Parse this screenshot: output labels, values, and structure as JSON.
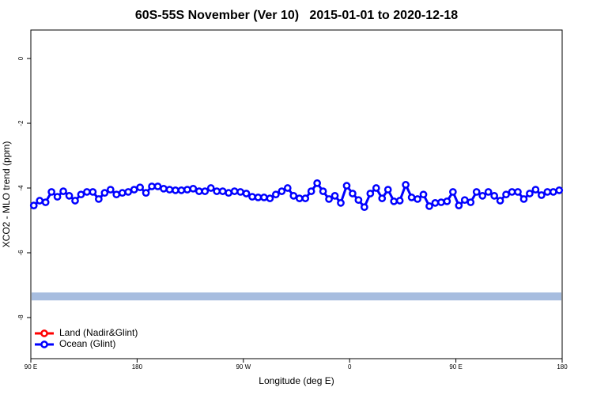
{
  "chart_data": {
    "type": "line",
    "title": "60S-55S November (Ver 10)   2015-01-01 to 2020-12-18",
    "x_label": "Longitude (deg E)",
    "y_label": "XCO2 - MLO trend (ppm)",
    "xlim": [
      90,
      540
    ],
    "xticks": [
      {
        "value": 90,
        "label": "90 E"
      },
      180,
      {
        "value": 270,
        "label": "90 W"
      },
      {
        "value": 360,
        "label": "0"
      },
      {
        "value": 450,
        "label": "90 E"
      },
      {
        "value": 540,
        "label": "180"
      }
    ],
    "ylim": [
      -9.27,
      0.88
    ],
    "yticks": [
      0,
      -2,
      -4,
      -6,
      -8
    ],
    "legend": "bottom-left",
    "band": {
      "value": -7.35,
      "color": "#a7bddf"
    },
    "x": [
      92.5,
      97.5,
      102.5,
      107.5,
      112.5,
      117.5,
      122.5,
      127.5,
      132.5,
      137.5,
      142.5,
      147.5,
      152.5,
      157.5,
      162.5,
      167.5,
      172.5,
      177.5,
      182.5,
      187.5,
      192.5,
      197.5,
      202.5,
      207.5,
      212.5,
      217.5,
      222.5,
      227.5,
      232.5,
      237.5,
      242.5,
      247.5,
      252.5,
      257.5,
      262.5,
      267.5,
      272.5,
      277.5,
      282.5,
      287.5,
      292.5,
      297.5,
      302.5,
      307.5,
      312.5,
      317.5,
      322.5,
      327.5,
      332.5,
      337.5,
      342.5,
      347.5,
      352.5,
      357.5,
      362.5,
      367.5,
      372.5,
      377.5,
      382.5,
      387.5,
      392.5,
      397.5,
      402.5,
      407.5,
      412.5,
      417.5,
      422.5,
      427.5,
      432.5,
      437.5,
      442.5,
      447.5,
      452.5,
      457.5,
      462.5,
      467.5,
      472.5,
      477.5,
      482.5,
      487.5,
      492.5,
      497.5,
      502.5,
      507.5,
      512.5,
      517.5,
      522.5,
      527.5,
      532.5,
      537.5
    ],
    "series": [
      {
        "name": "Land (Nadir&Glint)",
        "color": "#ff0000",
        "values": [
          null,
          null,
          null,
          null,
          null,
          null,
          null,
          null,
          null,
          null,
          null,
          null,
          null,
          null,
          null,
          null,
          null,
          null,
          null,
          null,
          null,
          null,
          null,
          null,
          null,
          null,
          null,
          null,
          null,
          null,
          null,
          null,
          null,
          null,
          null,
          null,
          null,
          null,
          null,
          null,
          null,
          null,
          null,
          null,
          null,
          null,
          null,
          null,
          null,
          null,
          null,
          null,
          null,
          null,
          null,
          null,
          null,
          null,
          null,
          null,
          null,
          null,
          null,
          null,
          null,
          null,
          null,
          null,
          null,
          null,
          null,
          null,
          null,
          null,
          null,
          null,
          null,
          null,
          null,
          null,
          null,
          null,
          null,
          null,
          null,
          null,
          null,
          null,
          null,
          null
        ]
      },
      {
        "name": "Ocean (Glint)",
        "color": "#0000ff",
        "values": [
          -4.54,
          -4.39,
          -4.44,
          -4.12,
          -4.27,
          -4.1,
          -4.24,
          -4.39,
          -4.2,
          -4.12,
          -4.12,
          -4.34,
          -4.15,
          -4.05,
          -4.2,
          -4.15,
          -4.12,
          -4.05,
          -3.98,
          -4.15,
          -3.95,
          -3.95,
          -4.02,
          -4.05,
          -4.07,
          -4.07,
          -4.05,
          -4.02,
          -4.1,
          -4.1,
          -4.0,
          -4.1,
          -4.1,
          -4.15,
          -4.1,
          -4.12,
          -4.17,
          -4.27,
          -4.29,
          -4.29,
          -4.32,
          -4.2,
          -4.1,
          -4.0,
          -4.24,
          -4.32,
          -4.32,
          -4.1,
          -3.85,
          -4.1,
          -4.34,
          -4.24,
          -4.46,
          -3.93,
          -4.17,
          -4.37,
          -4.59,
          -4.17,
          -4.0,
          -4.32,
          -4.05,
          -4.41,
          -4.39,
          -3.9,
          -4.29,
          -4.34,
          -4.2,
          -4.56,
          -4.46,
          -4.44,
          -4.41,
          -4.12,
          -4.54,
          -4.37,
          -4.44,
          -4.12,
          -4.24,
          -4.12,
          -4.24,
          -4.39,
          -4.2,
          -4.12,
          -4.12,
          -4.34,
          -4.17,
          -4.05,
          -4.22,
          -4.12,
          -4.12,
          -4.07
        ]
      }
    ]
  }
}
